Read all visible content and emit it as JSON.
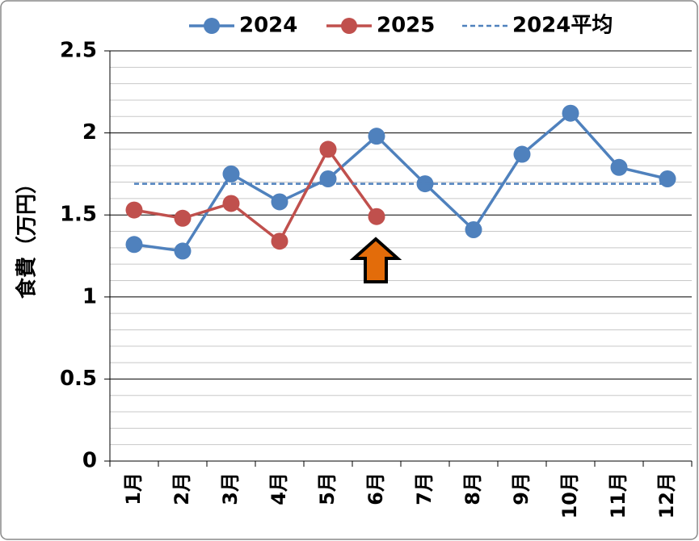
{
  "chart_data": {
    "type": "line",
    "y_label": "食費（万円）",
    "categories": [
      "1月",
      "2月",
      "3月",
      "4月",
      "5月",
      "6月",
      "7月",
      "8月",
      "9月",
      "10月",
      "11月",
      "12月"
    ],
    "series": [
      {
        "name": "2024",
        "color": "#4f81bd",
        "values": [
          1.32,
          1.28,
          1.75,
          1.58,
          1.72,
          1.98,
          1.69,
          1.41,
          1.87,
          2.12,
          1.79,
          1.72
        ]
      },
      {
        "name": "2025",
        "color": "#c0504d",
        "values": [
          1.53,
          1.48,
          1.57,
          1.34,
          1.9,
          1.49,
          null,
          null,
          null,
          null,
          null,
          null
        ]
      },
      {
        "name": "2024平均",
        "color": "#4f81bd",
        "dashed": true,
        "markers": false,
        "values": [
          1.69,
          1.69,
          1.69,
          1.69,
          1.69,
          1.69,
          1.69,
          1.69,
          1.69,
          1.69,
          1.69,
          1.69
        ]
      }
    ],
    "ylim": [
      0,
      2.5
    ],
    "yticks": [
      0,
      0.5,
      1,
      1.5,
      2,
      2.5
    ],
    "minor_yticks": [
      0.1,
      0.2,
      0.3,
      0.4,
      0.6,
      0.7,
      0.8,
      0.9,
      1.1,
      1.2,
      1.3,
      1.4,
      1.6,
      1.7,
      1.8,
      1.9,
      2.1,
      2.2,
      2.3,
      2.4
    ],
    "grid": true,
    "legend": "top"
  }
}
